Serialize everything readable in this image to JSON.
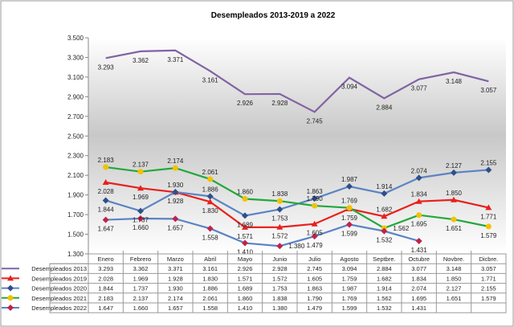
{
  "chart_data": {
    "type": "line",
    "title": "Desempleados 2013-2019 a 2022",
    "categories": [
      "Enero",
      "Febrero",
      "Marzo",
      "Abril",
      "Mayo",
      "Junio",
      "Julio",
      "Agosto",
      "Septbre.",
      "Octubre",
      "Novbre.",
      "Dicbre."
    ],
    "ylim": [
      1300,
      3500
    ],
    "yticks": [
      "1.300",
      "1.500",
      "1.700",
      "1.900",
      "2.100",
      "2.300",
      "2.500",
      "2.700",
      "2.900",
      "3.100",
      "3.300",
      "3.500"
    ],
    "grid": false,
    "legend": "data-table",
    "series": [
      {
        "name": "Desempleados 2013",
        "color": "#8064A2",
        "marker": "none",
        "markerColor": "#8064A2",
        "values": [
          3293,
          3362,
          3371,
          3161,
          2926,
          2928,
          2745,
          3094,
          2884,
          3077,
          3148,
          3057
        ],
        "labels": [
          "3.293",
          "3.362",
          "3.371",
          "3.161",
          "2.926",
          "2.928",
          "2.745",
          "3.094",
          "2.884",
          "3.077",
          "3.148",
          "3.057"
        ]
      },
      {
        "name": "Desempleados 2019",
        "color": "#E8201C",
        "marker": "triangle",
        "markerColor": "#E8201C",
        "values": [
          2028,
          1969,
          1928,
          1830,
          1571,
          1572,
          1605,
          1759,
          1682,
          1834,
          1850,
          1771
        ],
        "labels": [
          "2.028",
          "1.969",
          "1.928",
          "1.830",
          "1.571",
          "1.572",
          "1.605",
          "1.759",
          "1.682",
          "1.834",
          "1.850",
          "1.771"
        ]
      },
      {
        "name": "Desempleados 2020",
        "color": "#5B84C4",
        "marker": "diamond",
        "markerColor": "#2F4F8A",
        "values": [
          1844,
          1737,
          1930,
          1886,
          1689,
          1753,
          1863,
          1987,
          1914,
          2074,
          2127,
          2155
        ],
        "labels": [
          "1.844",
          "1.737",
          "1.930",
          "1.886",
          "1.689",
          "1.753",
          "1.863",
          "1.987",
          "1.914",
          "2.074",
          "2.127",
          "2.155"
        ]
      },
      {
        "name": "Desempleados 2021",
        "color": "#22A83A",
        "marker": "circle",
        "markerColor": "#F2C200",
        "values": [
          2183,
          2137,
          2174,
          2061,
          1860,
          1838,
          1790,
          1769,
          1562,
          1695,
          1651,
          1579
        ],
        "labels": [
          "2.183",
          "2.137",
          "2.174",
          "2.061",
          "1.860",
          "1.838",
          "1.790",
          "1.769",
          "1.562",
          "1.695",
          "1.651",
          "1.579"
        ]
      },
      {
        "name": "Desempleados 2022",
        "color": "#5B84C4",
        "marker": "diamond",
        "markerColor": "#C0234A",
        "values": [
          1647,
          1660,
          1657,
          1558,
          1410,
          1380,
          1479,
          1599,
          1532,
          1431,
          null,
          null
        ],
        "labels": [
          "1.647",
          "1.660",
          "1.657",
          "1.558",
          "1.410",
          "1.380",
          "1.479",
          "1.599",
          "1.532",
          "1.431",
          "",
          ""
        ]
      }
    ]
  }
}
